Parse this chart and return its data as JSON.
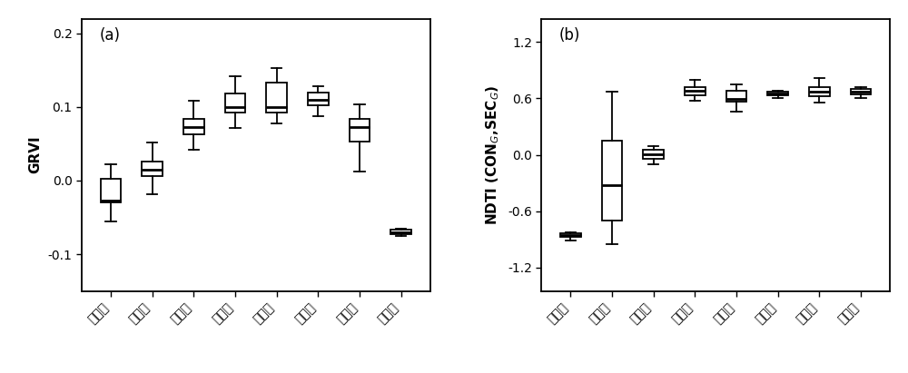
{
  "labels": [
    "出苗期",
    "分贘期",
    "拔节期",
    "孕穗期",
    "抽穗期",
    "开花期",
    "灌浆期",
    "成熟期"
  ],
  "grvi_boxes": [
    {
      "whislo": -0.055,
      "q1": -0.03,
      "med": -0.027,
      "q3": 0.002,
      "whishi": 0.022
    },
    {
      "whislo": -0.018,
      "q1": 0.006,
      "med": 0.015,
      "q3": 0.026,
      "whishi": 0.052
    },
    {
      "whislo": 0.042,
      "q1": 0.063,
      "med": 0.073,
      "q3": 0.084,
      "whishi": 0.108
    },
    {
      "whislo": 0.072,
      "q1": 0.093,
      "med": 0.1,
      "q3": 0.118,
      "whishi": 0.142
    },
    {
      "whislo": 0.078,
      "q1": 0.092,
      "med": 0.1,
      "q3": 0.133,
      "whishi": 0.153
    },
    {
      "whislo": 0.088,
      "q1": 0.102,
      "med": 0.11,
      "q3": 0.12,
      "whishi": 0.128
    },
    {
      "whislo": 0.012,
      "q1": 0.053,
      "med": 0.073,
      "q3": 0.084,
      "whishi": 0.103
    },
    {
      "whislo": -0.075,
      "q1": -0.073,
      "med": -0.07,
      "q3": -0.067,
      "whishi": -0.065
    }
  ],
  "ndti_boxes": [
    {
      "whislo": -0.91,
      "q1": -0.875,
      "med": -0.855,
      "q3": -0.84,
      "whishi": -0.825
    },
    {
      "whislo": -0.95,
      "q1": -0.7,
      "med": -0.32,
      "q3": 0.15,
      "whishi": 0.67
    },
    {
      "whislo": -0.1,
      "q1": -0.04,
      "med": 0.01,
      "q3": 0.055,
      "whishi": 0.095
    },
    {
      "whislo": 0.58,
      "q1": 0.635,
      "med": 0.68,
      "q3": 0.725,
      "whishi": 0.8
    },
    {
      "whislo": 0.46,
      "q1": 0.565,
      "med": 0.595,
      "q3": 0.68,
      "whishi": 0.75
    },
    {
      "whislo": 0.605,
      "q1": 0.635,
      "med": 0.652,
      "q3": 0.668,
      "whishi": 0.68
    },
    {
      "whislo": 0.555,
      "q1": 0.625,
      "med": 0.67,
      "q3": 0.72,
      "whishi": 0.82
    },
    {
      "whislo": 0.6,
      "q1": 0.643,
      "med": 0.67,
      "q3": 0.7,
      "whishi": 0.722
    }
  ],
  "grvi_ylim": [
    -0.15,
    0.22
  ],
  "grvi_yticks": [
    -0.1,
    0.0,
    0.1,
    0.2
  ],
  "ndti_ylim": [
    -1.45,
    1.45
  ],
  "ndti_yticks": [
    -1.2,
    -0.6,
    0.0,
    0.6,
    1.2
  ],
  "panel_a_label": "(a)",
  "panel_b_label": "(b)",
  "ylabel_a": "GRVI",
  "background_color": "#ffffff",
  "box_facecolor": "#ffffff",
  "box_edgecolor": "#000000",
  "median_color": "#000000",
  "whisker_color": "#000000",
  "cap_color": "#000000"
}
